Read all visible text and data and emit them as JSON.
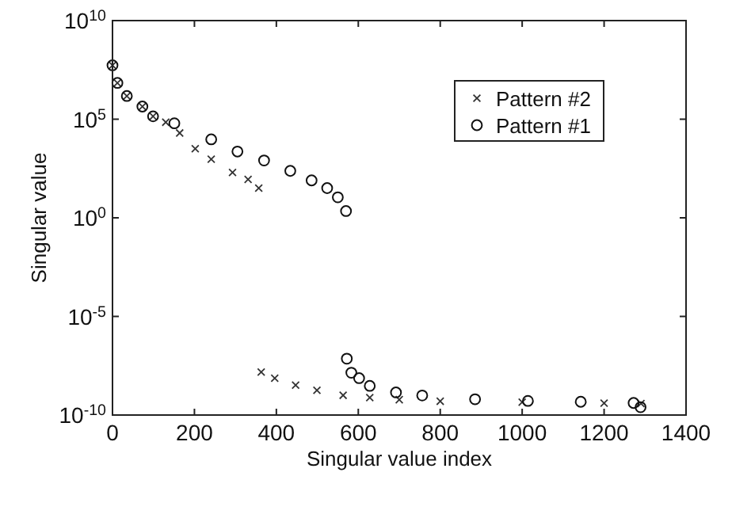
{
  "chart_data": {
    "type": "scatter",
    "xlabel": "Singular value index",
    "ylabel": "Singular value",
    "log": "y",
    "grid": false,
    "legend": "top right",
    "xlim": [
      0,
      1400
    ],
    "xticks": [
      0,
      200,
      400,
      600,
      800,
      1000,
      1200,
      1400
    ],
    "ylim": [
      1e-10,
      10000000000.0
    ],
    "yticks": [
      {
        "value": 1e-10,
        "label": "10$^{-10}$"
      },
      {
        "value": 1e-05,
        "label": "10$^{-5}$"
      },
      {
        "value": 1,
        "label": "10$^{0}$"
      },
      {
        "value": 100000.0,
        "label": "10$^{5}$"
      },
      {
        "value": 10000000000.0,
        "label": "10$^{10}$"
      }
    ],
    "series": [
      {
        "name": "Pattern #2",
        "color": "#333333",
        "marker": "cross",
        "x": [
          0,
          12,
          35,
          73,
          99,
          130,
          164,
          202,
          241,
          293,
          331,
          357,
          363,
          396,
          447,
          499,
          563,
          628,
          700,
          800,
          1000,
          1200,
          1290
        ],
        "values": [
          54000000.0,
          6900000.0,
          1500000.0,
          440000.0,
          140000.0,
          70000.0,
          20000.0,
          3200.0,
          930,
          200,
          89,
          32,
          1.5e-08,
          7.4e-09,
          3.3e-09,
          1.8e-09,
          1e-09,
          7.6e-10,
          6e-10,
          5e-10,
          4.5e-10,
          4e-10,
          3.8e-10
        ]
      },
      {
        "name": "Pattern #1",
        "color": "#111111",
        "marker": "circle",
        "x": [
          0,
          12,
          35,
          73,
          99,
          151,
          241,
          305,
          370,
          434,
          486,
          524,
          550,
          570,
          572,
          583,
          602,
          628,
          692,
          756,
          885,
          1014,
          1143,
          1272,
          1289
        ],
        "values": [
          54000000.0,
          6900000.0,
          1500000.0,
          440000.0,
          140000.0,
          62000.0,
          9500.0,
          2300.0,
          810,
          240,
          79,
          32,
          11,
          2.2,
          7.2e-08,
          1.4e-08,
          7.4e-09,
          3e-09,
          1.4e-09,
          9.8e-10,
          6.3e-10,
          5.2e-10,
          4.7e-10,
          4.1e-10,
          2.5e-10
        ]
      }
    ]
  }
}
